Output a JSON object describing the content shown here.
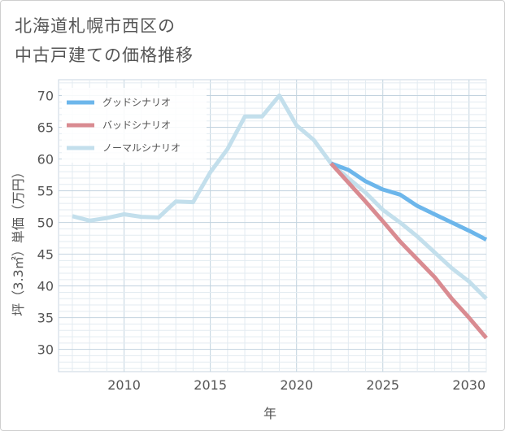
{
  "title": {
    "line1": "北海道札幌市西区の",
    "line2": "中古戸建ての価格推移"
  },
  "chart_data": {
    "type": "line",
    "xlabel": "年",
    "ylabel": "坪（3.3㎡）単価（万円）",
    "xlim": [
      2006.2,
      2031
    ],
    "ylim": [
      26.5,
      72.5
    ],
    "x_ticks": [
      2010,
      2015,
      2020,
      2025,
      2030
    ],
    "y_ticks": [
      30,
      35,
      40,
      45,
      50,
      55,
      60,
      65,
      70
    ],
    "grid": true,
    "legend_position": "top-left",
    "series": [
      {
        "name": "グッドシナリオ",
        "color": "#6cb6eb",
        "x": [
          2022,
          2023,
          2024,
          2025,
          2026,
          2027,
          2028,
          2029,
          2030,
          2031
        ],
        "y": [
          59.3,
          58.3,
          56.5,
          55.2,
          54.4,
          52.6,
          51.3,
          50.0,
          48.7,
          47.3
        ]
      },
      {
        "name": "バッドシナリオ",
        "color": "#d98b91",
        "x": [
          2022,
          2023,
          2024,
          2025,
          2026,
          2027,
          2028,
          2029,
          2030,
          2031
        ],
        "y": [
          59.3,
          56.3,
          53.3,
          50.2,
          47.0,
          44.2,
          41.4,
          38.0,
          35.0,
          31.8
        ]
      },
      {
        "name": "ノーマルシナリオ",
        "color": "#c3dfec",
        "x": [
          2007,
          2008,
          2009,
          2010,
          2011,
          2012,
          2013,
          2014,
          2015,
          2016,
          2017,
          2018,
          2019,
          2020,
          2021,
          2022,
          2023,
          2024,
          2025,
          2026,
          2027,
          2028,
          2029,
          2030,
          2031
        ],
        "y": [
          51.0,
          50.3,
          50.7,
          51.3,
          50.9,
          50.8,
          53.3,
          53.2,
          57.9,
          61.6,
          66.7,
          66.7,
          70.0,
          65.3,
          63.0,
          59.3,
          57.0,
          54.7,
          52.0,
          50.0,
          47.8,
          45.3,
          42.8,
          40.7,
          38.0
        ]
      }
    ]
  }
}
